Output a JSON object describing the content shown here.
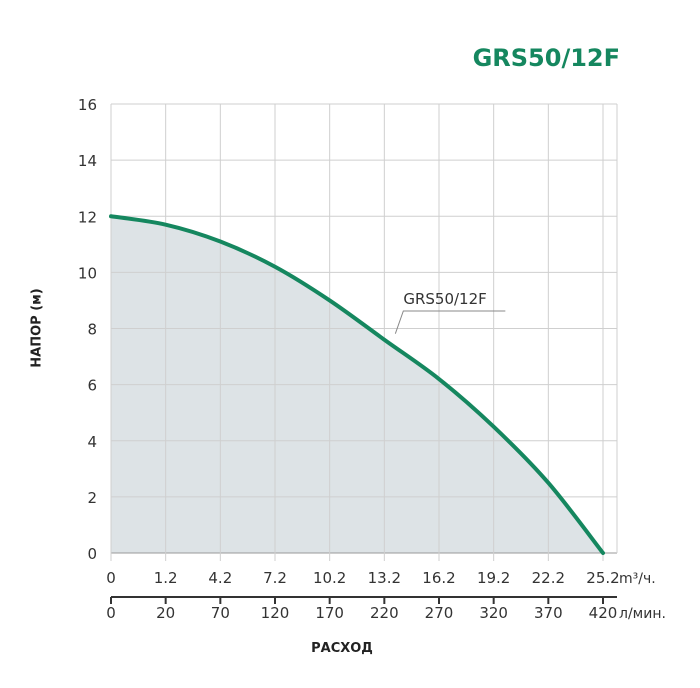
{
  "chart_data": {
    "type": "area",
    "title": "GRS50/12F",
    "ylabel": "НАПОР (м)",
    "xlabel": "РАСХОД",
    "ylim": [
      0,
      16
    ],
    "yticks": [
      0,
      2,
      4,
      6,
      8,
      10,
      12,
      14,
      16
    ],
    "grid": true,
    "x_primary": {
      "unit": "m³/ч.",
      "ticks": [
        "0",
        "1.2",
        "4.2",
        "7.2",
        "10.2",
        "13.2",
        "16.2",
        "19.2",
        "22.2",
        "25.2"
      ]
    },
    "x_secondary": {
      "unit": "л/мин.",
      "ticks": [
        "0",
        "20",
        "70",
        "120",
        "170",
        "220",
        "270",
        "320",
        "370",
        "420"
      ]
    },
    "series": [
      {
        "name": "GRS50/12F",
        "values": [
          12.0,
          11.7,
          11.1,
          10.2,
          9.0,
          7.6,
          6.2,
          4.5,
          2.5,
          0.0
        ]
      }
    ],
    "colors": {
      "curve": "#15875f",
      "fill": "#dde3e6",
      "grid": "#cfcfcf",
      "title": "#15875f"
    }
  }
}
